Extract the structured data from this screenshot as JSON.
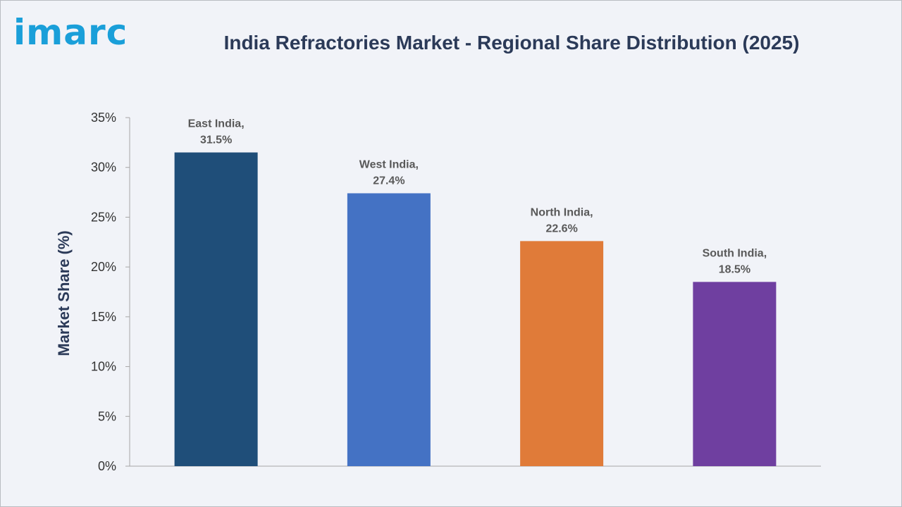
{
  "brand": {
    "logo_text": "imarc",
    "logo_color": "#1a9fd9"
  },
  "chart_data": {
    "type": "bar",
    "title": "India Refractories Market - Regional Share Distribution (2025)",
    "xlabel": "",
    "ylabel": "Market Share (%)",
    "ylim": [
      0,
      35
    ],
    "yticks": [
      0,
      5,
      10,
      15,
      20,
      25,
      30,
      35
    ],
    "ytick_labels": [
      "0%",
      "5%",
      "10%",
      "15%",
      "20%",
      "25%",
      "30%",
      "35%"
    ],
    "grid": false,
    "legend": "none",
    "categories": [
      "East India",
      "West India",
      "North India",
      "South India"
    ],
    "values": [
      31.5,
      27.4,
      22.6,
      18.5
    ],
    "data_labels": [
      [
        "East India,",
        "31.5%"
      ],
      [
        "West India,",
        "27.4%"
      ],
      [
        "North India,",
        "22.6%"
      ],
      [
        "South India,",
        "18.5%"
      ]
    ],
    "colors": [
      "#1f4e79",
      "#4472c4",
      "#e07b39",
      "#6f3fa0"
    ]
  }
}
